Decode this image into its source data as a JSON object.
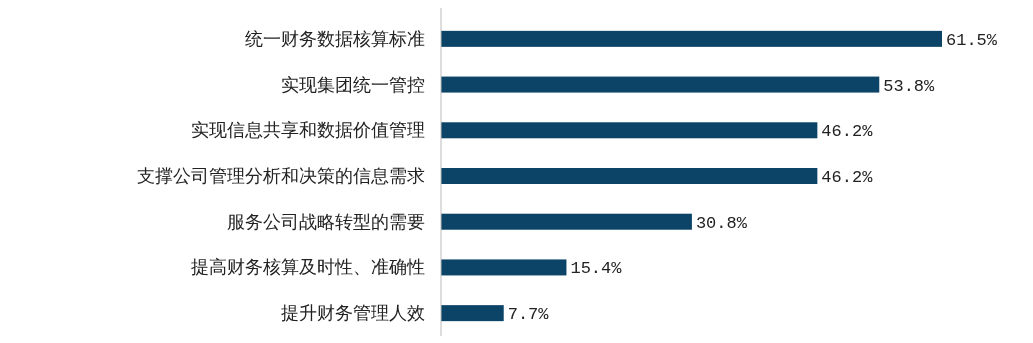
{
  "chart_data": {
    "type": "bar",
    "orientation": "horizontal",
    "categories": [
      "统一财务数据核算标准",
      "实现集团统一管控",
      "实现信息共享和数据价值管理",
      "支撑公司管理分析和决策的信息需求",
      "服务公司战略转型的需要",
      "提高财务核算及时性、准确性",
      "提升财务管理人效"
    ],
    "values": [
      61.5,
      53.8,
      46.2,
      46.2,
      30.8,
      15.4,
      7.7
    ],
    "value_labels": [
      "61.5%",
      "53.8%",
      "46.2%",
      "46.2%",
      "30.8%",
      "15.4%",
      "7.7%"
    ],
    "color": "#0b4466"
  }
}
